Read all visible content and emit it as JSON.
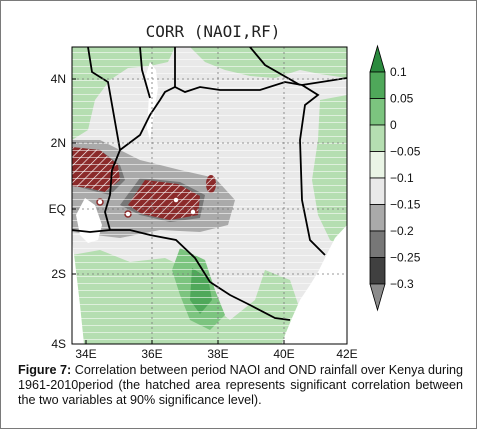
{
  "plot_title": "CORR (NAOI,RF)",
  "lat_labels": [
    "4N",
    "2N",
    "EQ",
    "2S",
    "4S"
  ],
  "lon_labels": [
    "34E",
    "36E",
    "38E",
    "40E",
    "42E"
  ],
  "colorbar": {
    "ticks": [
      "0.1",
      "0.05",
      "0",
      "−0.05",
      "−0.1",
      "−0.15",
      "−0.2",
      "−0.25",
      "−0.3"
    ],
    "colors": [
      "#2b8a3e",
      "#4fa85a",
      "#7cc47f",
      "#b5deb1",
      "#eaf5e6",
      "#e9e9e9",
      "#aaaaaa",
      "#777777",
      "#404040"
    ]
  },
  "caption": {
    "label": "Figure 7:",
    "text": " Correlation between period NAOI and OND rainfall over Kenya during 1961-2010period (the hatched area represents significant correlation between the two variables at 90% significance level)."
  }
}
